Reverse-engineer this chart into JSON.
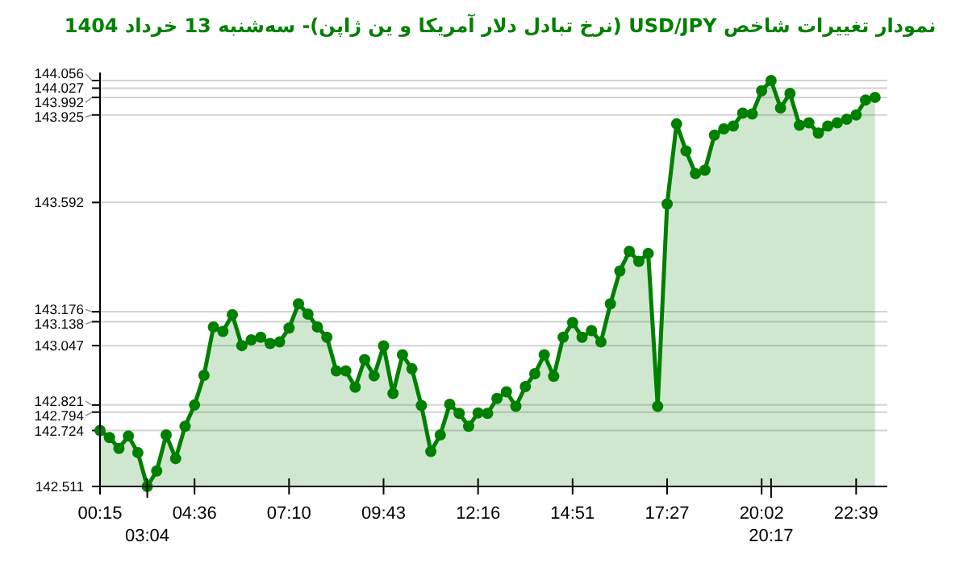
{
  "chart_data": {
    "type": "area",
    "title": "نمودار تغییرات شاخص USD/JPY (نرخ تبادل دلار آمریکا و ین ژاپن)- سه‌شنبه  13 خرداد 1404",
    "categories": [
      "00:15",
      null,
      null,
      null,
      null,
      "03:04",
      null,
      null,
      null,
      null,
      "04:36",
      null,
      null,
      null,
      null,
      null,
      null,
      null,
      null,
      null,
      "07:10",
      null,
      null,
      null,
      null,
      null,
      null,
      null,
      null,
      null,
      "09:43",
      null,
      null,
      null,
      null,
      null,
      null,
      null,
      null,
      null,
      "12:16",
      null,
      null,
      null,
      null,
      null,
      null,
      null,
      null,
      null,
      "14:51",
      null,
      null,
      null,
      null,
      null,
      null,
      null,
      null,
      null,
      "17:27",
      null,
      null,
      null,
      null,
      null,
      null,
      null,
      null,
      null,
      "20:02",
      "20:17",
      null,
      null,
      null,
      null,
      null,
      null,
      null,
      null,
      "22:39",
      null,
      null
    ],
    "series": [
      {
        "color": "#008000",
        "values": [
          142.724,
          142.697,
          142.656,
          142.703,
          142.64,
          142.511,
          142.57,
          142.707,
          142.617,
          142.74,
          142.821,
          142.934,
          143.118,
          143.101,
          143.165,
          143.047,
          143.069,
          143.079,
          143.055,
          143.061,
          143.114,
          143.206,
          143.167,
          143.118,
          143.079,
          142.951,
          142.951,
          142.889,
          142.994,
          142.932,
          143.046,
          142.865,
          143.012,
          142.959,
          142.819,
          142.644,
          142.707,
          142.824,
          142.789,
          142.74,
          142.791,
          142.789,
          142.846,
          142.871,
          142.816,
          142.891,
          142.94,
          143.012,
          142.93,
          143.079,
          143.135,
          143.079,
          143.104,
          143.061,
          143.206,
          143.331,
          143.406,
          143.368,
          143.398,
          142.816,
          143.586,
          143.891,
          143.788,
          143.702,
          143.715,
          143.848,
          143.872,
          143.883,
          143.932,
          143.929,
          144.017,
          144.056,
          143.952,
          144.007,
          143.886,
          143.895,
          143.856,
          143.883,
          143.895,
          143.909,
          143.925,
          143.982,
          143.992
        ]
      }
    ],
    "ylim": [
      142.511,
      144.056
    ],
    "yticks": [
      142.511,
      142.724,
      142.794,
      142.821,
      143.047,
      143.138,
      143.176,
      143.592,
      143.925,
      143.992,
      144.027,
      144.056
    ],
    "grid": "y",
    "marker": "circle",
    "line_style": "solid"
  }
}
